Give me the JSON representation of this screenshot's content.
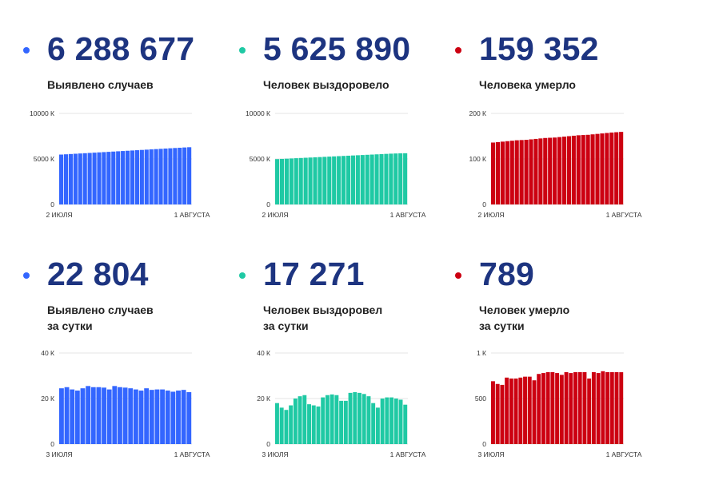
{
  "colors": {
    "number": "#1d3480",
    "blue": "#3366ff",
    "teal": "#1fc9a4",
    "red": "#cc0011"
  },
  "panels": [
    {
      "value": "6 288 677",
      "label1": "Выявлено случаев",
      "label2": "",
      "dot_color": "#3366ff",
      "chart_data": {
        "type": "bar",
        "x_start_label": "2 ИЮЛЯ",
        "x_end_label": "1 АВГУСТА",
        "ylim": [
          0,
          10000
        ],
        "y_ticks": [
          {
            "value": 0,
            "label": "0"
          },
          {
            "value": 5000,
            "label": "5000 К"
          },
          {
            "value": 10000,
            "label": "10000 К"
          }
        ],
        "color": "#3366ff",
        "values": [
          5480,
          5510,
          5540,
          5570,
          5600,
          5630,
          5660,
          5690,
          5720,
          5750,
          5780,
          5810,
          5840,
          5870,
          5900,
          5930,
          5960,
          5990,
          6020,
          6050,
          6080,
          6110,
          6140,
          6170,
          6200,
          6230,
          6260,
          6288
        ]
      }
    },
    {
      "value": "5 625 890",
      "label1": "Человек выздоровело",
      "label2": "",
      "dot_color": "#1fc9a4",
      "chart_data": {
        "type": "bar",
        "x_start_label": "2 ИЮЛЯ",
        "x_end_label": "1 АВГУСТА",
        "ylim": [
          0,
          10000
        ],
        "y_ticks": [
          {
            "value": 0,
            "label": "0"
          },
          {
            "value": 5000,
            "label": "5000 К"
          },
          {
            "value": 10000,
            "label": "10000 К"
          }
        ],
        "color": "#1fc9a4",
        "values": [
          4980,
          5005,
          5030,
          5055,
          5080,
          5105,
          5130,
          5155,
          5180,
          5205,
          5230,
          5255,
          5280,
          5305,
          5330,
          5355,
          5380,
          5405,
          5430,
          5455,
          5480,
          5505,
          5530,
          5555,
          5580,
          5600,
          5615,
          5626
        ]
      }
    },
    {
      "value": "159 352",
      "label1": "Человека умерло",
      "label2": "",
      "dot_color": "#cc0011",
      "chart_data": {
        "type": "bar",
        "x_start_label": "2 ИЮЛЯ",
        "x_end_label": "1 АВГУСТА",
        "ylim": [
          0,
          200
        ],
        "y_ticks": [
          {
            "value": 0,
            "label": "0"
          },
          {
            "value": 100,
            "label": "100 К"
          },
          {
            "value": 200,
            "label": "200 К"
          }
        ],
        "color": "#cc0011",
        "values": [
          136,
          137,
          138,
          139,
          140,
          141,
          141.5,
          142,
          143,
          144,
          145,
          146,
          146.5,
          147,
          148,
          149,
          150,
          151,
          152,
          152.5,
          153,
          154,
          155,
          156,
          157,
          158,
          158.7,
          159.4
        ]
      }
    },
    {
      "value": "22 804",
      "label1": "Выявлено случаев",
      "label2": "за сутки",
      "dot_color": "#3366ff",
      "chart_data": {
        "type": "bar",
        "x_start_label": "3 ИЮЛЯ",
        "x_end_label": "1 АВГУСТА",
        "ylim": [
          0,
          40
        ],
        "y_ticks": [
          {
            "value": 0,
            "label": "0"
          },
          {
            "value": 20,
            "label": "20 К"
          },
          {
            "value": 40,
            "label": "40 К"
          }
        ],
        "color": "#3366ff",
        "values": [
          24.5,
          25,
          24,
          23.5,
          24.5,
          25.5,
          25,
          25,
          24.8,
          24,
          25.5,
          25,
          24.8,
          24.5,
          24,
          23.5,
          24.5,
          23.8,
          24,
          24,
          23.5,
          23,
          23.5,
          23.8,
          22.8
        ]
      }
    },
    {
      "value": "17 271",
      "label1": "Человек выздоровел",
      "label2": "за сутки",
      "dot_color": "#1fc9a4",
      "chart_data": {
        "type": "bar",
        "x_start_label": "3 ИЮЛЯ",
        "x_end_label": "1 АВГУСТА",
        "ylim": [
          0,
          40
        ],
        "y_ticks": [
          {
            "value": 0,
            "label": "0"
          },
          {
            "value": 20,
            "label": "20 К"
          },
          {
            "value": 40,
            "label": "40 К"
          }
        ],
        "color": "#1fc9a4",
        "values": [
          18,
          16,
          15,
          17,
          20,
          21,
          21.5,
          17.5,
          17,
          16.5,
          20.5,
          21.5,
          21.8,
          21.5,
          19,
          19,
          22.5,
          22.8,
          22.5,
          22,
          21,
          18,
          16,
          20,
          20.5,
          20.5,
          20,
          19.5,
          17.3
        ]
      }
    },
    {
      "value": "789",
      "label1": "Человек умерло",
      "label2": "за сутки",
      "dot_color": "#cc0011",
      "chart_data": {
        "type": "bar",
        "x_start_label": "3 ИЮЛЯ",
        "x_end_label": "1 АВГУСТА",
        "ylim": [
          0,
          1000
        ],
        "y_ticks": [
          {
            "value": 0,
            "label": "0"
          },
          {
            "value": 500,
            "label": "500"
          },
          {
            "value": 1000,
            "label": "1 К"
          }
        ],
        "color": "#cc0011",
        "values": [
          690,
          660,
          650,
          730,
          720,
          720,
          730,
          740,
          740,
          700,
          770,
          780,
          790,
          790,
          780,
          760,
          790,
          780,
          790,
          790,
          790,
          720,
          790,
          780,
          800,
          790,
          790,
          790,
          789
        ]
      }
    }
  ]
}
